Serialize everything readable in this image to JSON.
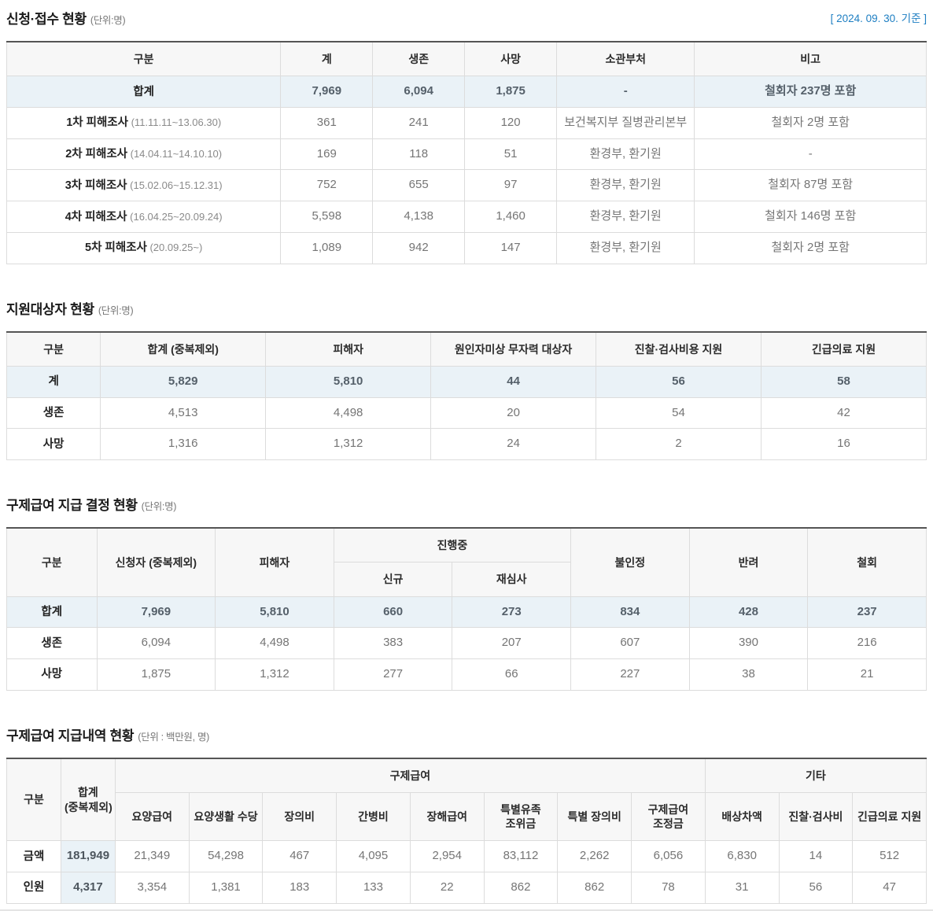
{
  "page": {
    "date_badge": "[ 2024. 09. 30. 기준 ]",
    "accent_blue": "#1d7ec2",
    "highlight_bg": "#eaf2f7",
    "header_bg": "#f7f7f7"
  },
  "sections": [
    {
      "title": "신청·접수 현황",
      "unit": "(단위:명)",
      "table": {
        "header_rows": [
          [
            {
              "label": "구분"
            },
            {
              "label": "계"
            },
            {
              "label": "생존"
            },
            {
              "label": "사망"
            },
            {
              "label": "소관부처"
            },
            {
              "label": "비고"
            }
          ]
        ],
        "rows": [
          {
            "label": "합계",
            "highlight": true,
            "cells": [
              "7,969",
              "6,094",
              "1,875",
              "-",
              "철회자 237명 포함"
            ]
          },
          {
            "label": "1차 피해조사",
            "sub": "(11.11.11~13.06.30)",
            "cells": [
              "361",
              "241",
              "120",
              "보건복지부 질병관리본부",
              "철회자 2명 포함"
            ]
          },
          {
            "label": "2차 피해조사",
            "sub": "(14.04.11~14.10.10)",
            "cells": [
              "169",
              "118",
              "51",
              "환경부, 환기원",
              "-"
            ]
          },
          {
            "label": "3차 피해조사",
            "sub": "(15.02.06~15.12.31)",
            "cells": [
              "752",
              "655",
              "97",
              "환경부, 환기원",
              "철회자 87명 포함"
            ]
          },
          {
            "label": "4차 피해조사",
            "sub": "(16.04.25~20.09.24)",
            "cells": [
              "5,598",
              "4,138",
              "1,460",
              "환경부, 환기원",
              "철회자 146명 포함"
            ]
          },
          {
            "label": "5차 피해조사",
            "sub": "(20.09.25~)",
            "cells": [
              "1,089",
              "942",
              "147",
              "환경부, 환기원",
              "철회자 2명 포함"
            ]
          }
        ]
      }
    },
    {
      "title": "지원대상자 현황",
      "unit": "(단위:명)",
      "table": {
        "header_rows": [
          [
            {
              "label": "구분"
            },
            {
              "label": "합계 (중복제외)"
            },
            {
              "label": "피해자"
            },
            {
              "label": "원인자미상 무자력 대상자"
            },
            {
              "label": "진찰·검사비용 지원"
            },
            {
              "label": "긴급의료 지원"
            }
          ]
        ],
        "rows": [
          {
            "label": "계",
            "highlight": true,
            "cells": [
              "5,829",
              "5,810",
              "44",
              "56",
              "58"
            ]
          },
          {
            "label": "생존",
            "cells": [
              "4,513",
              "4,498",
              "20",
              "54",
              "42"
            ]
          },
          {
            "label": "사망",
            "cells": [
              "1,316",
              "1,312",
              "24",
              "2",
              "16"
            ]
          }
        ]
      }
    },
    {
      "title": "구제급여 지급 결정 현황",
      "unit": "(단위:명)",
      "table": {
        "header_rows": [
          [
            {
              "label": "구분",
              "rowspan": 2
            },
            {
              "label": "신청자 (중복제외)",
              "rowspan": 2
            },
            {
              "label": "피해자",
              "rowspan": 2
            },
            {
              "label": "진행중",
              "colspan": 2
            },
            {
              "label": "불인정",
              "rowspan": 2
            },
            {
              "label": "반려",
              "rowspan": 2
            },
            {
              "label": "철회",
              "rowspan": 2
            }
          ],
          [
            {
              "label": "신규"
            },
            {
              "label": "재심사"
            }
          ]
        ],
        "rows": [
          {
            "label": "합계",
            "highlight": true,
            "cells": [
              "7,969",
              "5,810",
              "660",
              "273",
              "834",
              "428",
              "237"
            ]
          },
          {
            "label": "생존",
            "cells": [
              "6,094",
              "4,498",
              "383",
              "207",
              "607",
              "390",
              "216"
            ]
          },
          {
            "label": "사망",
            "cells": [
              "1,875",
              "1,312",
              "277",
              "66",
              "227",
              "38",
              "21"
            ]
          }
        ]
      }
    },
    {
      "title": "구제급여 지급내역 현황",
      "unit": "(단위 : 백만원, 명)",
      "table": {
        "first_cell_highlight": true,
        "header_rows": [
          [
            {
              "label": "구분",
              "rowspan": 2
            },
            {
              "label": "합계",
              "label2": "(중복제외)",
              "rowspan": 2
            },
            {
              "label": "구제급여",
              "colspan": 8
            },
            {
              "label": "기타",
              "colspan": 3
            }
          ],
          [
            {
              "label": "요양급여"
            },
            {
              "label": "요양생활 수당"
            },
            {
              "label": "장의비"
            },
            {
              "label": "간병비"
            },
            {
              "label": "장해급여"
            },
            {
              "label": "특별유족 조위금"
            },
            {
              "label": "특별 장의비"
            },
            {
              "label": "구제급여 조정금"
            },
            {
              "label": "배상차액"
            },
            {
              "label": "진찰·검사비"
            },
            {
              "label": "긴급의료 지원"
            }
          ]
        ],
        "rows": [
          {
            "label": "금액",
            "cells": [
              "181,949",
              "21,349",
              "54,298",
              "467",
              "4,095",
              "2,954",
              "83,112",
              "2,262",
              "6,056",
              "6,830",
              "14",
              "512"
            ]
          },
          {
            "label": "인원",
            "cells": [
              "4,317",
              "3,354",
              "1,381",
              "183",
              "133",
              "22",
              "862",
              "862",
              "78",
              "31",
              "56",
              "47"
            ]
          }
        ]
      }
    }
  ]
}
